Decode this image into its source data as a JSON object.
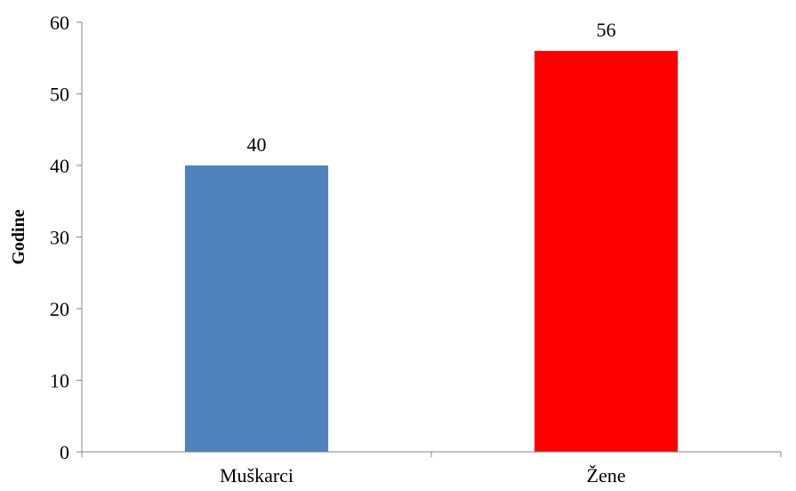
{
  "chart_data": {
    "type": "bar",
    "categories": [
      "Muškarci",
      "Žene"
    ],
    "values": [
      40,
      56
    ],
    "colors": [
      "#4f81bd",
      "#ff0000"
    ],
    "data_labels": [
      "40",
      "56"
    ],
    "title": "",
    "xlabel": "",
    "ylabel": "Godine",
    "ylim": [
      0,
      60
    ],
    "yticks": [
      0,
      10,
      20,
      30,
      40,
      50,
      60
    ],
    "ytick_labels": [
      "0",
      "10",
      "20",
      "30",
      "40",
      "50",
      "60"
    ],
    "grid": false,
    "legend": "none"
  }
}
